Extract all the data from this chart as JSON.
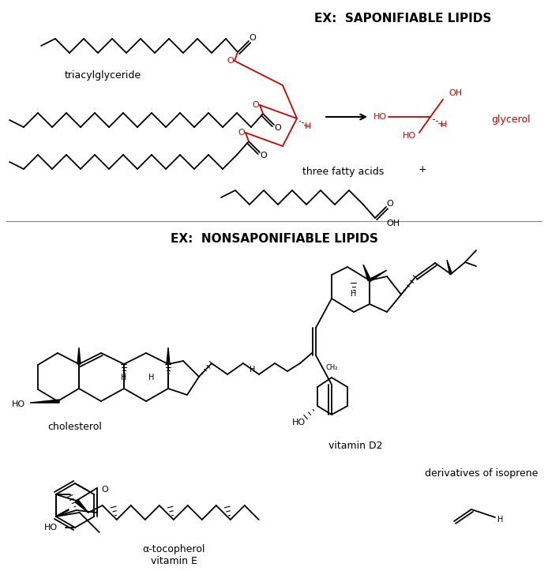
{
  "title_saponifiable": "EX:  SAPONIFIABLE LIPIDS",
  "title_nonsaponifiable": "EX:  NONSAPONIFIABLE LIPIDS",
  "label_triacylglyceride": "triacylglyceride",
  "label_glycerol": "glycerol",
  "label_three_fatty_acids": "three fatty acids",
  "label_cholesterol": "cholesterol",
  "label_vitamin_d2": "vitamin D2",
  "label_alpha_tocopherol": "α-tocopherol",
  "label_vitamin_e": "vitamin E",
  "label_derivatives": "derivatives of isoprene",
  "bg_color": "#ffffff",
  "line_color": "#000000",
  "red_color": "#cc0000",
  "fig_width": 6.94,
  "fig_height": 7.23,
  "dpi": 100
}
